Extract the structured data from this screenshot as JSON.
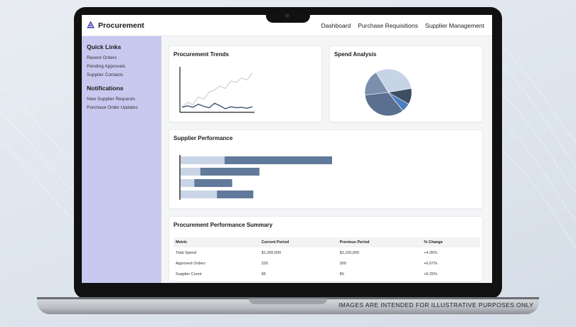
{
  "app": {
    "title": "Procurement"
  },
  "nav": [
    {
      "label": "Dashboard"
    },
    {
      "label": "Purchase Requisitions"
    },
    {
      "label": "Supplier Management"
    }
  ],
  "sidebar": {
    "quick_links_heading": "Quick Links",
    "quick_links": [
      "Recent Orders",
      "Pending Approvals",
      "Supplier Contacts"
    ],
    "notifications_heading": "Notifications",
    "notifications": [
      "New Supplier Requests",
      "Purchase Order Updates"
    ]
  },
  "cards": {
    "trends_title": "Procurement Trends",
    "spend_title": "Spend Analysis",
    "supplier_title": "Supplier Performance",
    "summary_title": "Procurement Performance Summary"
  },
  "chart_data": [
    {
      "type": "line",
      "x": [
        1,
        2,
        3,
        4,
        5,
        6,
        7,
        8,
        9,
        10,
        11,
        12,
        13,
        14
      ],
      "series": [
        {
          "values": [
            10,
            20,
            15,
            30,
            26,
            40,
            44,
            52,
            47,
            62,
            59,
            68,
            64,
            78
          ],
          "color": "#c9ccd1"
        },
        {
          "values": [
            10,
            13,
            10,
            16,
            12,
            9,
            18,
            13,
            7,
            11,
            9,
            10,
            8,
            11
          ],
          "color": "#3b5276"
        }
      ],
      "ylim": [
        0,
        90
      ],
      "grid": false
    },
    {
      "type": "pie",
      "values": [
        31,
        11,
        6,
        34,
        18
      ],
      "colors": [
        "#c6d4e6",
        "#3d4d62",
        "#4a7dc0",
        "#5b7090",
        "#7a90ad"
      ]
    },
    {
      "type": "bar",
      "orientation": "horizontal",
      "stacked": true,
      "series": [
        {
          "values": [
            29,
            13,
            9,
            24
          ],
          "color": "#c9d5e6"
        },
        {
          "values": [
            71,
            39,
            25,
            24
          ],
          "color": "#61799a"
        }
      ],
      "xlim": [
        0,
        100
      ]
    }
  ],
  "table": {
    "headers": [
      "Metric",
      "Current Period",
      "Previous Period",
      "% Change"
    ],
    "rows": [
      [
        "Total Spend",
        "$1,200,000",
        "$1,150,000",
        "+4.35%"
      ],
      [
        "Approved Orders",
        "320",
        "300",
        "+6.67%"
      ],
      [
        "Supplier Count",
        "85",
        "80",
        "+6.25%"
      ]
    ]
  },
  "footer": {
    "disclaimer": "IMAGES ARE INTENDED FOR ILLUSTRATIVE PURPOSES ONLY"
  },
  "colors": {
    "sidebar_bg": "#c9c8ef",
    "accent": "#3b5276",
    "positive": "#2aa85a"
  }
}
